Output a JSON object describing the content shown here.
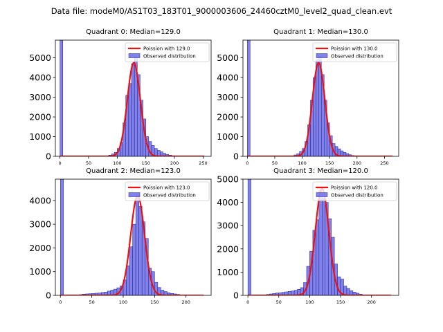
{
  "figure": {
    "suptitle": "Data file: modeM0/AS1T03_183T01_9000003606_24460cztM0_level2_quad_clean.evt",
    "bar_color": "#6b6be6",
    "bar_edge_color": "#202090",
    "fit_color": "#ee1111"
  },
  "chart_data": [
    {
      "type": "bar",
      "title": "Quadrant 0: Median=129.0",
      "xlim": [
        -8,
        264
      ],
      "ylim": [
        0,
        5900
      ],
      "xticks": [
        0,
        50,
        100,
        150,
        200,
        250
      ],
      "yticks": [
        0,
        1000,
        2000,
        3000,
        4000,
        5000
      ],
      "bin_width": 5,
      "bins": [
        {
          "x": 0,
          "y": 5900
        },
        {
          "x": 85,
          "y": 60
        },
        {
          "x": 90,
          "y": 120
        },
        {
          "x": 95,
          "y": 200
        },
        {
          "x": 100,
          "y": 400
        },
        {
          "x": 105,
          "y": 700
        },
        {
          "x": 110,
          "y": 1700
        },
        {
          "x": 115,
          "y": 3100
        },
        {
          "x": 120,
          "y": 3700
        },
        {
          "x": 125,
          "y": 4700
        },
        {
          "x": 130,
          "y": 5050
        },
        {
          "x": 135,
          "y": 4150
        },
        {
          "x": 140,
          "y": 2850
        },
        {
          "x": 145,
          "y": 1900
        },
        {
          "x": 150,
          "y": 1000
        },
        {
          "x": 155,
          "y": 750
        },
        {
          "x": 160,
          "y": 550
        },
        {
          "x": 165,
          "y": 400
        },
        {
          "x": 170,
          "y": 300
        },
        {
          "x": 175,
          "y": 230
        },
        {
          "x": 180,
          "y": 150
        },
        {
          "x": 185,
          "y": 100
        },
        {
          "x": 190,
          "y": 60
        },
        {
          "x": 195,
          "y": 30
        }
      ],
      "fit": {
        "mean": 129.0,
        "peak": 4750,
        "x_range": [
          0,
          252
        ]
      },
      "legend": {
        "position": "top-right",
        "entries": [
          "Poission with 129.0",
          "Observed distribution"
        ]
      }
    },
    {
      "type": "bar",
      "title": "Quadrant 1: Median=130.0",
      "xlim": [
        -8,
        276
      ],
      "ylim": [
        0,
        5900
      ],
      "xticks": [
        0,
        50,
        100,
        150,
        200,
        250
      ],
      "yticks": [
        0,
        1000,
        2000,
        3000,
        4000,
        5000
      ],
      "bin_width": 5,
      "bins": [
        {
          "x": 0,
          "y": 5900
        },
        {
          "x": 85,
          "y": 70
        },
        {
          "x": 90,
          "y": 130
        },
        {
          "x": 95,
          "y": 250
        },
        {
          "x": 100,
          "y": 400
        },
        {
          "x": 105,
          "y": 750
        },
        {
          "x": 110,
          "y": 1600
        },
        {
          "x": 115,
          "y": 2850
        },
        {
          "x": 120,
          "y": 4000
        },
        {
          "x": 125,
          "y": 4900
        },
        {
          "x": 130,
          "y": 5100
        },
        {
          "x": 135,
          "y": 4150
        },
        {
          "x": 140,
          "y": 2850
        },
        {
          "x": 145,
          "y": 1700
        },
        {
          "x": 150,
          "y": 1050
        },
        {
          "x": 155,
          "y": 650
        },
        {
          "x": 160,
          "y": 500
        },
        {
          "x": 165,
          "y": 380
        },
        {
          "x": 170,
          "y": 280
        },
        {
          "x": 175,
          "y": 200
        },
        {
          "x": 180,
          "y": 140
        },
        {
          "x": 185,
          "y": 80
        },
        {
          "x": 190,
          "y": 40
        }
      ],
      "fit": {
        "mean": 130.0,
        "peak": 4750,
        "x_range": [
          0,
          265
        ]
      },
      "legend": {
        "position": "top-right",
        "entries": [
          "Poission with 130.0",
          "Observed distribution"
        ]
      }
    },
    {
      "type": "bar",
      "title": "Quadrant 2: Median=123.0",
      "xlim": [
        -8,
        240
      ],
      "ylim": [
        0,
        4900
      ],
      "xticks": [
        0,
        50,
        100,
        150,
        200
      ],
      "yticks": [
        0,
        1000,
        2000,
        3000,
        4000
      ],
      "bin_width": 5,
      "bins": [
        {
          "x": 0,
          "y": 4900
        },
        {
          "x": 30,
          "y": 30
        },
        {
          "x": 35,
          "y": 50
        },
        {
          "x": 40,
          "y": 60
        },
        {
          "x": 45,
          "y": 70
        },
        {
          "x": 50,
          "y": 80
        },
        {
          "x": 55,
          "y": 90
        },
        {
          "x": 60,
          "y": 100
        },
        {
          "x": 65,
          "y": 120
        },
        {
          "x": 70,
          "y": 140
        },
        {
          "x": 75,
          "y": 180
        },
        {
          "x": 80,
          "y": 220
        },
        {
          "x": 85,
          "y": 260
        },
        {
          "x": 90,
          "y": 320
        },
        {
          "x": 95,
          "y": 400
        },
        {
          "x": 100,
          "y": 650
        },
        {
          "x": 105,
          "y": 1250
        },
        {
          "x": 110,
          "y": 2050
        },
        {
          "x": 115,
          "y": 3000
        },
        {
          "x": 120,
          "y": 4250
        },
        {
          "x": 125,
          "y": 3750
        },
        {
          "x": 130,
          "y": 3100
        },
        {
          "x": 135,
          "y": 2400
        },
        {
          "x": 140,
          "y": 1150
        },
        {
          "x": 145,
          "y": 1000
        },
        {
          "x": 150,
          "y": 550
        },
        {
          "x": 155,
          "y": 330
        },
        {
          "x": 160,
          "y": 220
        },
        {
          "x": 165,
          "y": 160
        },
        {
          "x": 170,
          "y": 110
        },
        {
          "x": 175,
          "y": 80
        },
        {
          "x": 180,
          "y": 60
        },
        {
          "x": 185,
          "y": 40
        }
      ],
      "fit": {
        "mean": 123.0,
        "peak": 4200,
        "x_range": [
          0,
          228
        ]
      },
      "legend": {
        "position": "top-right",
        "entries": [
          "Poission with 123.0",
          "Observed distribution"
        ]
      }
    },
    {
      "type": "bar",
      "title": "Quadrant 3: Median=120.0",
      "xlim": [
        -8,
        244
      ],
      "ylim": [
        0,
        5000
      ],
      "xticks": [
        0,
        50,
        100,
        150,
        200
      ],
      "yticks": [
        0,
        1000,
        2000,
        3000,
        4000,
        5000
      ],
      "bin_width": 5,
      "bins": [
        {
          "x": 0,
          "y": 5000
        },
        {
          "x": 30,
          "y": 40
        },
        {
          "x": 35,
          "y": 60
        },
        {
          "x": 40,
          "y": 80
        },
        {
          "x": 45,
          "y": 100
        },
        {
          "x": 50,
          "y": 110
        },
        {
          "x": 55,
          "y": 130
        },
        {
          "x": 60,
          "y": 150
        },
        {
          "x": 65,
          "y": 170
        },
        {
          "x": 70,
          "y": 190
        },
        {
          "x": 75,
          "y": 220
        },
        {
          "x": 80,
          "y": 260
        },
        {
          "x": 85,
          "y": 330
        },
        {
          "x": 90,
          "y": 550
        },
        {
          "x": 95,
          "y": 1250
        },
        {
          "x": 100,
          "y": 1900
        },
        {
          "x": 105,
          "y": 2800
        },
        {
          "x": 110,
          "y": 3250
        },
        {
          "x": 115,
          "y": 4500
        },
        {
          "x": 120,
          "y": 4200
        },
        {
          "x": 125,
          "y": 4000
        },
        {
          "x": 130,
          "y": 3300
        },
        {
          "x": 135,
          "y": 2500
        },
        {
          "x": 140,
          "y": 1350
        },
        {
          "x": 145,
          "y": 800
        },
        {
          "x": 150,
          "y": 700
        },
        {
          "x": 155,
          "y": 400
        },
        {
          "x": 160,
          "y": 300
        },
        {
          "x": 165,
          "y": 200
        },
        {
          "x": 170,
          "y": 140
        },
        {
          "x": 175,
          "y": 90
        },
        {
          "x": 180,
          "y": 50
        }
      ],
      "fit": {
        "mean": 120.0,
        "peak": 4600,
        "x_range": [
          0,
          232
        ]
      },
      "legend": {
        "position": "top-right",
        "entries": [
          "Poission with 120.0",
          "Observed distribution"
        ]
      }
    }
  ]
}
